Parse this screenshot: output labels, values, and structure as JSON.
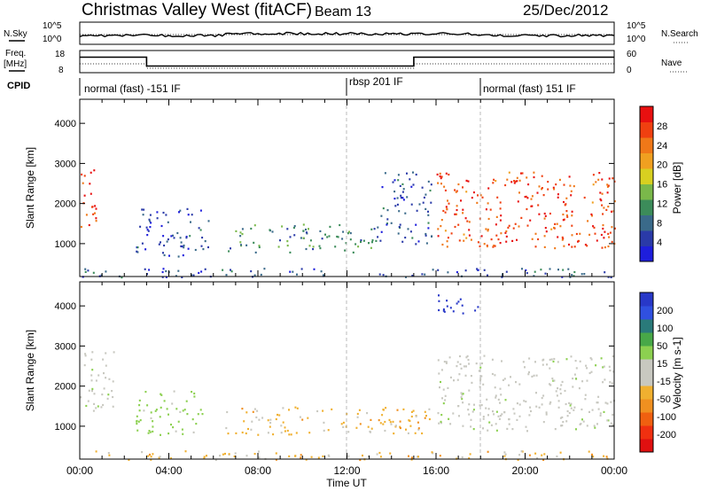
{
  "header": {
    "title": "Christmas Valley West (fitACF)",
    "beam": "Beam 13",
    "date": "25/Dec/2012"
  },
  "top_panels": {
    "nsky_label": "N.Sky",
    "nsky_scale_top": "10^5",
    "nsky_scale_bottom": "10^0",
    "nsearch_label": "N.Search",
    "nsearch_scale_top": "10^5",
    "nsearch_scale_bottom": "10^0",
    "freq_label_1": "Freq.",
    "freq_label_2": "[MHz]",
    "freq_scale_top": "18",
    "freq_scale_bottom": "8",
    "nave_label": "Nave",
    "nave_scale_top": "60",
    "nave_scale_bottom": "0",
    "cpid_label": "CPID",
    "cpid_segments": [
      {
        "label": "normal (fast) -151 IF",
        "start_hour": 0
      },
      {
        "label": "rbsp 201 IF",
        "start_hour": 12
      },
      {
        "label": "normal (fast) 151 IF",
        "start_hour": 18
      }
    ]
  },
  "axes": {
    "ylabel": "Slant Range [km]",
    "xlabel": "Time UT",
    "y_ticks": [
      "1000",
      "2000",
      "3000",
      "4000"
    ],
    "x_ticks": [
      "00:00",
      "04:00",
      "08:00",
      "12:00",
      "16:00",
      "20:00",
      "00:00"
    ]
  },
  "colorbars": {
    "power": {
      "label": "Power [dB]",
      "ticks": [
        "4",
        "8",
        "12",
        "16",
        "20",
        "24",
        "28"
      ],
      "colors": [
        "#1e1edc",
        "#2a3aa8",
        "#3a6a8a",
        "#3c8c5a",
        "#7ab84a",
        "#d8d020",
        "#f0a020",
        "#f07818",
        "#f04010",
        "#e81010"
      ]
    },
    "velocity": {
      "label": "Velocity [m s-1]",
      "ticks": [
        "200",
        "100",
        "50",
        "15",
        "-15",
        "-50",
        "-100",
        "-200"
      ],
      "colors": [
        "#2838c8",
        "#3050e0",
        "#2a7a7a",
        "#48a848",
        "#8cd050",
        "#c8c8c0",
        "#c8c8c0",
        "#f0b030",
        "#f09020",
        "#f06010",
        "#f03010",
        "#e01010"
      ]
    }
  },
  "chart_data": [
    {
      "type": "heatmap",
      "title": "Power",
      "xlabel": "Time UT",
      "ylabel": "Slant Range [km]",
      "xlim_hours": [
        0,
        24
      ],
      "ylim_km": [
        180,
        4600
      ],
      "colorbar_label": "Power [dB]",
      "colorbar_range": [
        0,
        32
      ],
      "echo_regions": [
        {
          "t": [
            0.0,
            0.8
          ],
          "r": [
            1400,
            2900
          ],
          "power": 28
        },
        {
          "t": [
            2.5,
            5.8
          ],
          "r": [
            700,
            1900
          ],
          "power": 6
        },
        {
          "t": [
            6.5,
            13.5
          ],
          "r": [
            800,
            1500
          ],
          "power": 10
        },
        {
          "t": [
            13.5,
            15.8
          ],
          "r": [
            1000,
            2800
          ],
          "power": 6
        },
        {
          "t": [
            16.0,
            24.0
          ],
          "r": [
            900,
            2800
          ],
          "power": 27
        },
        {
          "t": [
            0.0,
            24.0
          ],
          "r": [
            180,
            400
          ],
          "power": 6
        }
      ]
    },
    {
      "type": "heatmap",
      "title": "Velocity",
      "xlabel": "Time UT",
      "ylabel": "Slant Range [km]",
      "xlim_hours": [
        0,
        24
      ],
      "ylim_km": [
        180,
        4600
      ],
      "colorbar_label": "Velocity [m s-1]",
      "colorbar_range": [
        -200,
        200
      ],
      "echo_regions": [
        {
          "t": [
            0.0,
            1.5
          ],
          "r": [
            1400,
            2900
          ],
          "velocity": 0
        },
        {
          "t": [
            2.5,
            5.5
          ],
          "r": [
            800,
            1900
          ],
          "velocity": 30
        },
        {
          "t": [
            6.5,
            15.8
          ],
          "r": [
            800,
            1500
          ],
          "velocity": -60
        },
        {
          "t": [
            16.0,
            24.0
          ],
          "r": [
            900,
            2800
          ],
          "velocity": 0
        },
        {
          "t": [
            16.0,
            18.0
          ],
          "r": [
            3800,
            4300
          ],
          "velocity": 200
        },
        {
          "t": [
            0.0,
            24.0
          ],
          "r": [
            180,
            400
          ],
          "velocity": -60
        }
      ]
    }
  ]
}
